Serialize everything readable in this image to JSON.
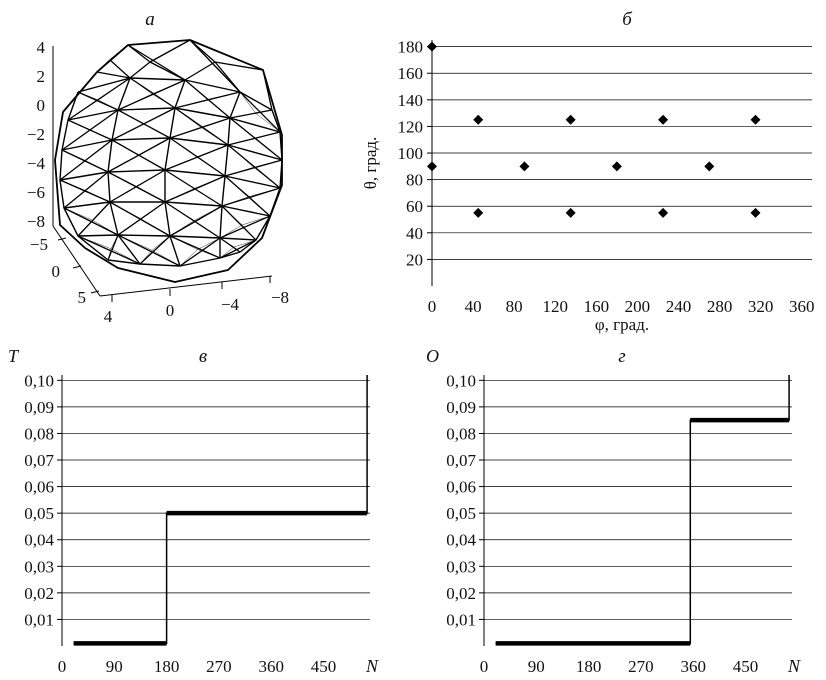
{
  "chart_data": [
    {
      "type": "surface-3d",
      "title": "а",
      "x_ticks": [
        "4",
        "0",
        "−4",
        "−8"
      ],
      "y_ticks": [
        "5",
        "0",
        "−5"
      ],
      "z_ticks": [
        "4",
        "2",
        "0",
        "−2",
        "−4",
        "−6",
        "−8"
      ]
    },
    {
      "type": "scatter",
      "title": "б",
      "xlabel": "φ, град.",
      "ylabel": "θ, град.",
      "xlim": [
        0,
        370
      ],
      "ylim": [
        0,
        185
      ],
      "x_ticks": [
        0,
        40,
        80,
        120,
        160,
        200,
        240,
        280,
        320,
        360
      ],
      "y_ticks": [
        20,
        40,
        60,
        80,
        100,
        120,
        140,
        160,
        180
      ],
      "grid": "horizontal",
      "points": [
        {
          "x": 0,
          "y": 180
        },
        {
          "x": 0,
          "y": 90
        },
        {
          "x": 45,
          "y": 125
        },
        {
          "x": 45,
          "y": 55
        },
        {
          "x": 90,
          "y": 90
        },
        {
          "x": 135,
          "y": 125
        },
        {
          "x": 135,
          "y": 55
        },
        {
          "x": 180,
          "y": 90
        },
        {
          "x": 225,
          "y": 125
        },
        {
          "x": 225,
          "y": 55
        },
        {
          "x": 270,
          "y": 90
        },
        {
          "x": 315,
          "y": 125
        },
        {
          "x": 315,
          "y": 55
        }
      ]
    },
    {
      "type": "line",
      "title": "в",
      "ylabel": "T",
      "xlabel": "N",
      "xlim": [
        0,
        530
      ],
      "ylim": [
        0,
        0.102
      ],
      "x_ticks": [
        "0",
        "90",
        "180",
        "270",
        "360",
        "450"
      ],
      "x_tick_values": [
        0,
        90,
        180,
        270,
        360,
        450
      ],
      "y_ticks": [
        "0,01",
        "0,02",
        "0,03",
        "0,04",
        "0,05",
        "0,06",
        "0,07",
        "0,08",
        "0,09",
        "0,10"
      ],
      "y_tick_values": [
        0.01,
        0.02,
        0.03,
        0.04,
        0.05,
        0.06,
        0.07,
        0.08,
        0.09,
        0.1
      ],
      "grid": "horizontal",
      "series": [
        {
          "x": [
            20,
            180,
            180,
            525,
            525
          ],
          "y": [
            0.001,
            0.001,
            0.05,
            0.05,
            0.102
          ]
        }
      ]
    },
    {
      "type": "line",
      "title": "г",
      "ylabel": "O",
      "xlabel": "N",
      "xlim": [
        0,
        530
      ],
      "ylim": [
        0,
        0.102
      ],
      "x_ticks": [
        "0",
        "90",
        "180",
        "270",
        "360",
        "450"
      ],
      "x_tick_values": [
        0,
        90,
        180,
        270,
        360,
        450
      ],
      "y_ticks": [
        "0,01",
        "0,02",
        "0,03",
        "0,04",
        "0,05",
        "0,06",
        "0,07",
        "0,08",
        "0,09",
        "0,10"
      ],
      "y_tick_values": [
        0.01,
        0.02,
        0.03,
        0.04,
        0.05,
        0.06,
        0.07,
        0.08,
        0.09,
        0.1
      ],
      "grid": "horizontal",
      "series": [
        {
          "x": [
            20,
            355,
            355,
            525,
            525
          ],
          "y": [
            0.001,
            0.001,
            0.085,
            0.085,
            0.102
          ]
        }
      ]
    }
  ]
}
